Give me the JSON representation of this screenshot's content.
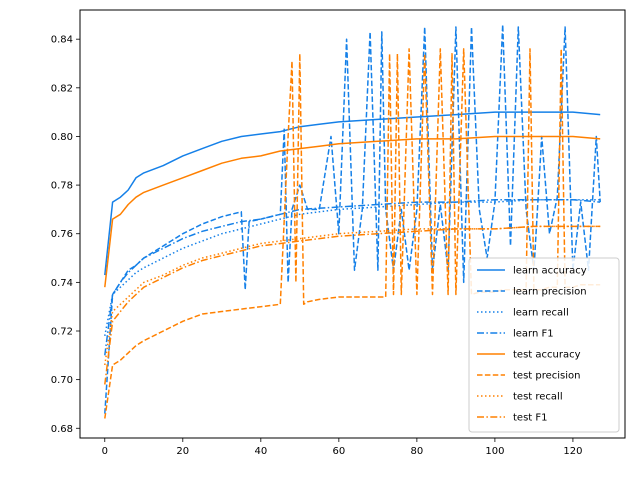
{
  "chart_data": {
    "type": "line",
    "title": "",
    "xlabel": "",
    "ylabel": "",
    "xlim": [
      -6.35,
      133.35
    ],
    "ylim": [
      0.676,
      0.852
    ],
    "xticks": [
      0,
      20,
      40,
      60,
      80,
      100,
      120
    ],
    "yticks": [
      0.68,
      0.7,
      0.72,
      0.74,
      0.76,
      0.78,
      0.8,
      0.82,
      0.84
    ],
    "ytick_labels": [
      "0.68",
      "0.70",
      "0.72",
      "0.74",
      "0.76",
      "0.78",
      "0.80",
      "0.82",
      "0.84"
    ],
    "grid": false,
    "legend_position": "lower-right",
    "colors": {
      "learn": "#1580e8",
      "test": "#ff8000"
    },
    "series": [
      {
        "name": "learn accuracy",
        "color": "#1580e8",
        "dash": "solid",
        "x": [
          0,
          2,
          4,
          6,
          8,
          10,
          15,
          20,
          25,
          30,
          35,
          40,
          45,
          50,
          55,
          60,
          70,
          80,
          90,
          100,
          110,
          120,
          127
        ],
        "y": [
          0.743,
          0.773,
          0.775,
          0.778,
          0.783,
          0.785,
          0.788,
          0.792,
          0.795,
          0.798,
          0.8,
          0.801,
          0.802,
          0.804,
          0.805,
          0.806,
          0.807,
          0.808,
          0.809,
          0.81,
          0.81,
          0.81,
          0.809
        ]
      },
      {
        "name": "learn precision",
        "color": "#1580e8",
        "dash": "dashed",
        "x": [
          0,
          2,
          4,
          6,
          8,
          10,
          15,
          20,
          25,
          30,
          35,
          36,
          37,
          40,
          45,
          46,
          47,
          48,
          50,
          52,
          55,
          58,
          60,
          62,
          64,
          66,
          68,
          70,
          71,
          72,
          74,
          76,
          78,
          80,
          82,
          84,
          86,
          88,
          90,
          92,
          94,
          96,
          98,
          100,
          102,
          104,
          106,
          108,
          110,
          112,
          114,
          116,
          118,
          120,
          122,
          124,
          126,
          127
        ],
        "y": [
          0.686,
          0.735,
          0.74,
          0.745,
          0.747,
          0.75,
          0.755,
          0.76,
          0.764,
          0.767,
          0.769,
          0.737,
          0.765,
          0.766,
          0.768,
          0.803,
          0.74,
          0.77,
          0.78,
          0.77,
          0.77,
          0.8,
          0.76,
          0.84,
          0.745,
          0.77,
          0.843,
          0.745,
          0.843,
          0.77,
          0.745,
          0.77,
          0.745,
          0.77,
          0.845,
          0.745,
          0.772,
          0.745,
          0.845,
          0.74,
          0.845,
          0.77,
          0.75,
          0.773,
          0.846,
          0.755,
          0.845,
          0.77,
          0.745,
          0.8,
          0.76,
          0.775,
          0.845,
          0.745,
          0.773,
          0.745,
          0.8,
          0.773
        ]
      },
      {
        "name": "learn recall",
        "color": "#1580e8",
        "dash": "dotted",
        "x": [
          0,
          2,
          4,
          6,
          8,
          10,
          15,
          20,
          25,
          30,
          35,
          40,
          45,
          50,
          60,
          70,
          80,
          90,
          100,
          110,
          120,
          127
        ],
        "y": [
          0.718,
          0.735,
          0.738,
          0.741,
          0.744,
          0.746,
          0.75,
          0.754,
          0.757,
          0.76,
          0.762,
          0.764,
          0.766,
          0.768,
          0.77,
          0.771,
          0.772,
          0.773,
          0.773,
          0.774,
          0.774,
          0.774
        ]
      },
      {
        "name": "learn F1",
        "color": "#1580e8",
        "dash": "dashdot",
        "x": [
          0,
          2,
          4,
          6,
          8,
          10,
          15,
          20,
          25,
          30,
          35,
          40,
          45,
          50,
          60,
          70,
          80,
          90,
          100,
          110,
          120,
          127
        ],
        "y": [
          0.71,
          0.735,
          0.74,
          0.744,
          0.747,
          0.75,
          0.754,
          0.758,
          0.761,
          0.763,
          0.765,
          0.766,
          0.768,
          0.77,
          0.771,
          0.772,
          0.773,
          0.773,
          0.774,
          0.774,
          0.774,
          0.773
        ]
      },
      {
        "name": "test accuracy",
        "color": "#ff8000",
        "dash": "solid",
        "x": [
          0,
          2,
          4,
          6,
          8,
          10,
          15,
          20,
          25,
          30,
          35,
          40,
          45,
          50,
          55,
          60,
          70,
          80,
          90,
          100,
          110,
          120,
          127
        ],
        "y": [
          0.738,
          0.766,
          0.768,
          0.772,
          0.775,
          0.777,
          0.78,
          0.783,
          0.786,
          0.789,
          0.791,
          0.792,
          0.794,
          0.795,
          0.796,
          0.797,
          0.798,
          0.799,
          0.799,
          0.8,
          0.8,
          0.8,
          0.799
        ]
      },
      {
        "name": "test precision",
        "color": "#ff8000",
        "dash": "dashed",
        "x": [
          0,
          2,
          4,
          6,
          8,
          10,
          15,
          20,
          25,
          30,
          35,
          40,
          45,
          47,
          48,
          49,
          50,
          51,
          52,
          55,
          60,
          65,
          70,
          72,
          73,
          74,
          75,
          76,
          78,
          80,
          82,
          84,
          86,
          88,
          89,
          90,
          92,
          94,
          96,
          98,
          100,
          102,
          104,
          106,
          108,
          109,
          110,
          112,
          114,
          116,
          117,
          118,
          120,
          122,
          124,
          126,
          127
        ],
        "y": [
          0.684,
          0.706,
          0.708,
          0.711,
          0.714,
          0.716,
          0.72,
          0.724,
          0.727,
          0.728,
          0.729,
          0.73,
          0.731,
          0.8,
          0.831,
          0.74,
          0.834,
          0.731,
          0.732,
          0.733,
          0.734,
          0.734,
          0.734,
          0.734,
          0.834,
          0.735,
          0.834,
          0.735,
          0.836,
          0.735,
          0.834,
          0.735,
          0.836,
          0.735,
          0.834,
          0.735,
          0.836,
          0.735,
          0.736,
          0.736,
          0.736,
          0.737,
          0.737,
          0.737,
          0.737,
          0.836,
          0.737,
          0.737,
          0.738,
          0.738,
          0.836,
          0.738,
          0.738,
          0.739,
          0.739,
          0.739,
          0.739
        ]
      },
      {
        "name": "test recall",
        "color": "#ff8000",
        "dash": "dotted",
        "x": [
          0,
          2,
          4,
          6,
          8,
          10,
          15,
          20,
          25,
          30,
          35,
          40,
          45,
          50,
          60,
          70,
          80,
          90,
          100,
          110,
          120,
          127
        ],
        "y": [
          0.706,
          0.728,
          0.731,
          0.734,
          0.737,
          0.74,
          0.743,
          0.747,
          0.75,
          0.752,
          0.754,
          0.756,
          0.757,
          0.758,
          0.76,
          0.761,
          0.762,
          0.762,
          0.762,
          0.763,
          0.763,
          0.763
        ]
      },
      {
        "name": "test F1",
        "color": "#ff8000",
        "dash": "dashdot",
        "x": [
          0,
          2,
          4,
          6,
          8,
          10,
          15,
          20,
          25,
          30,
          35,
          40,
          45,
          50,
          60,
          70,
          80,
          90,
          100,
          110,
          120,
          127
        ],
        "y": [
          0.698,
          0.724,
          0.728,
          0.732,
          0.735,
          0.738,
          0.742,
          0.746,
          0.749,
          0.751,
          0.753,
          0.755,
          0.756,
          0.757,
          0.759,
          0.76,
          0.761,
          0.762,
          0.762,
          0.763,
          0.763,
          0.763
        ]
      }
    ]
  }
}
